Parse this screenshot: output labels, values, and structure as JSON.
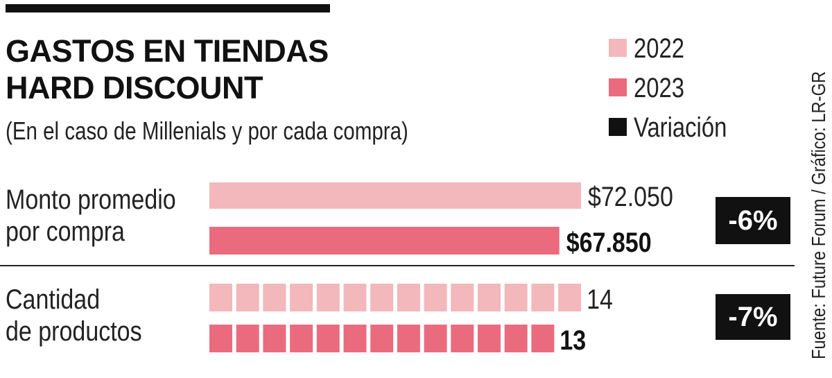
{
  "title_line1": "GASTOS EN TIENDAS",
  "title_line2": "HARD DISCOUNT",
  "subtitle": "(En el caso de Millenials y por cada compra)",
  "legend": [
    {
      "label": "2022",
      "color": "#f2b8bc"
    },
    {
      "label": "2023",
      "color": "#eb6b7e"
    },
    {
      "label": "Variación",
      "color": "#111111"
    }
  ],
  "source": "Fuente: Future Forum / Gráfico: LR-GR",
  "chart_data": [
    {
      "type": "bar",
      "category_label": [
        "Monto promedio",
        "por compra"
      ],
      "series": [
        {
          "name": "2022",
          "value": 72050,
          "label": "$72.050"
        },
        {
          "name": "2023",
          "value": 67850,
          "label": "$67.850"
        }
      ],
      "variation": "-6%"
    },
    {
      "type": "bar",
      "category_label": [
        "Cantidad",
        "de productos"
      ],
      "series": [
        {
          "name": "2022",
          "value": 14,
          "label": "14"
        },
        {
          "name": "2023",
          "value": 13,
          "label": "13"
        }
      ],
      "variation": "-7%"
    }
  ]
}
